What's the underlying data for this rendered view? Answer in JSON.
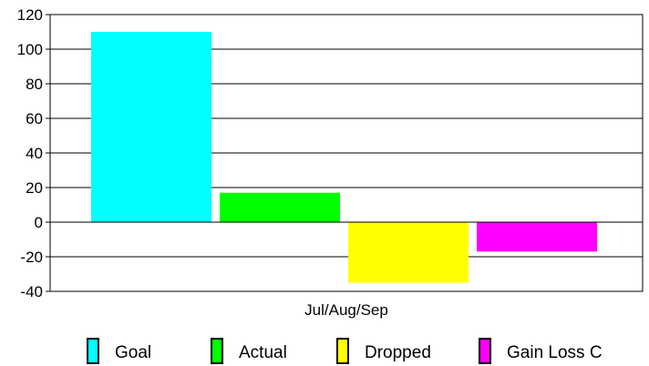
{
  "chart_data": {
    "type": "bar",
    "categories": [
      "Jul/Aug/Sep"
    ],
    "series": [
      {
        "name": "Goal",
        "values": [
          110
        ],
        "color": "#00FFFF"
      },
      {
        "name": "Actual",
        "values": [
          17
        ],
        "color": "#00FF00"
      },
      {
        "name": "Dropped",
        "values": [
          -35
        ],
        "color": "#FFFF00"
      },
      {
        "name": "Gain Loss C",
        "values": [
          -17
        ],
        "color": "#FF00FF"
      }
    ],
    "ylim": [
      -40,
      120
    ],
    "yticks": [
      -40,
      -20,
      0,
      20,
      40,
      60,
      80,
      100,
      120
    ],
    "grid": true,
    "legend_position": "bottom"
  }
}
